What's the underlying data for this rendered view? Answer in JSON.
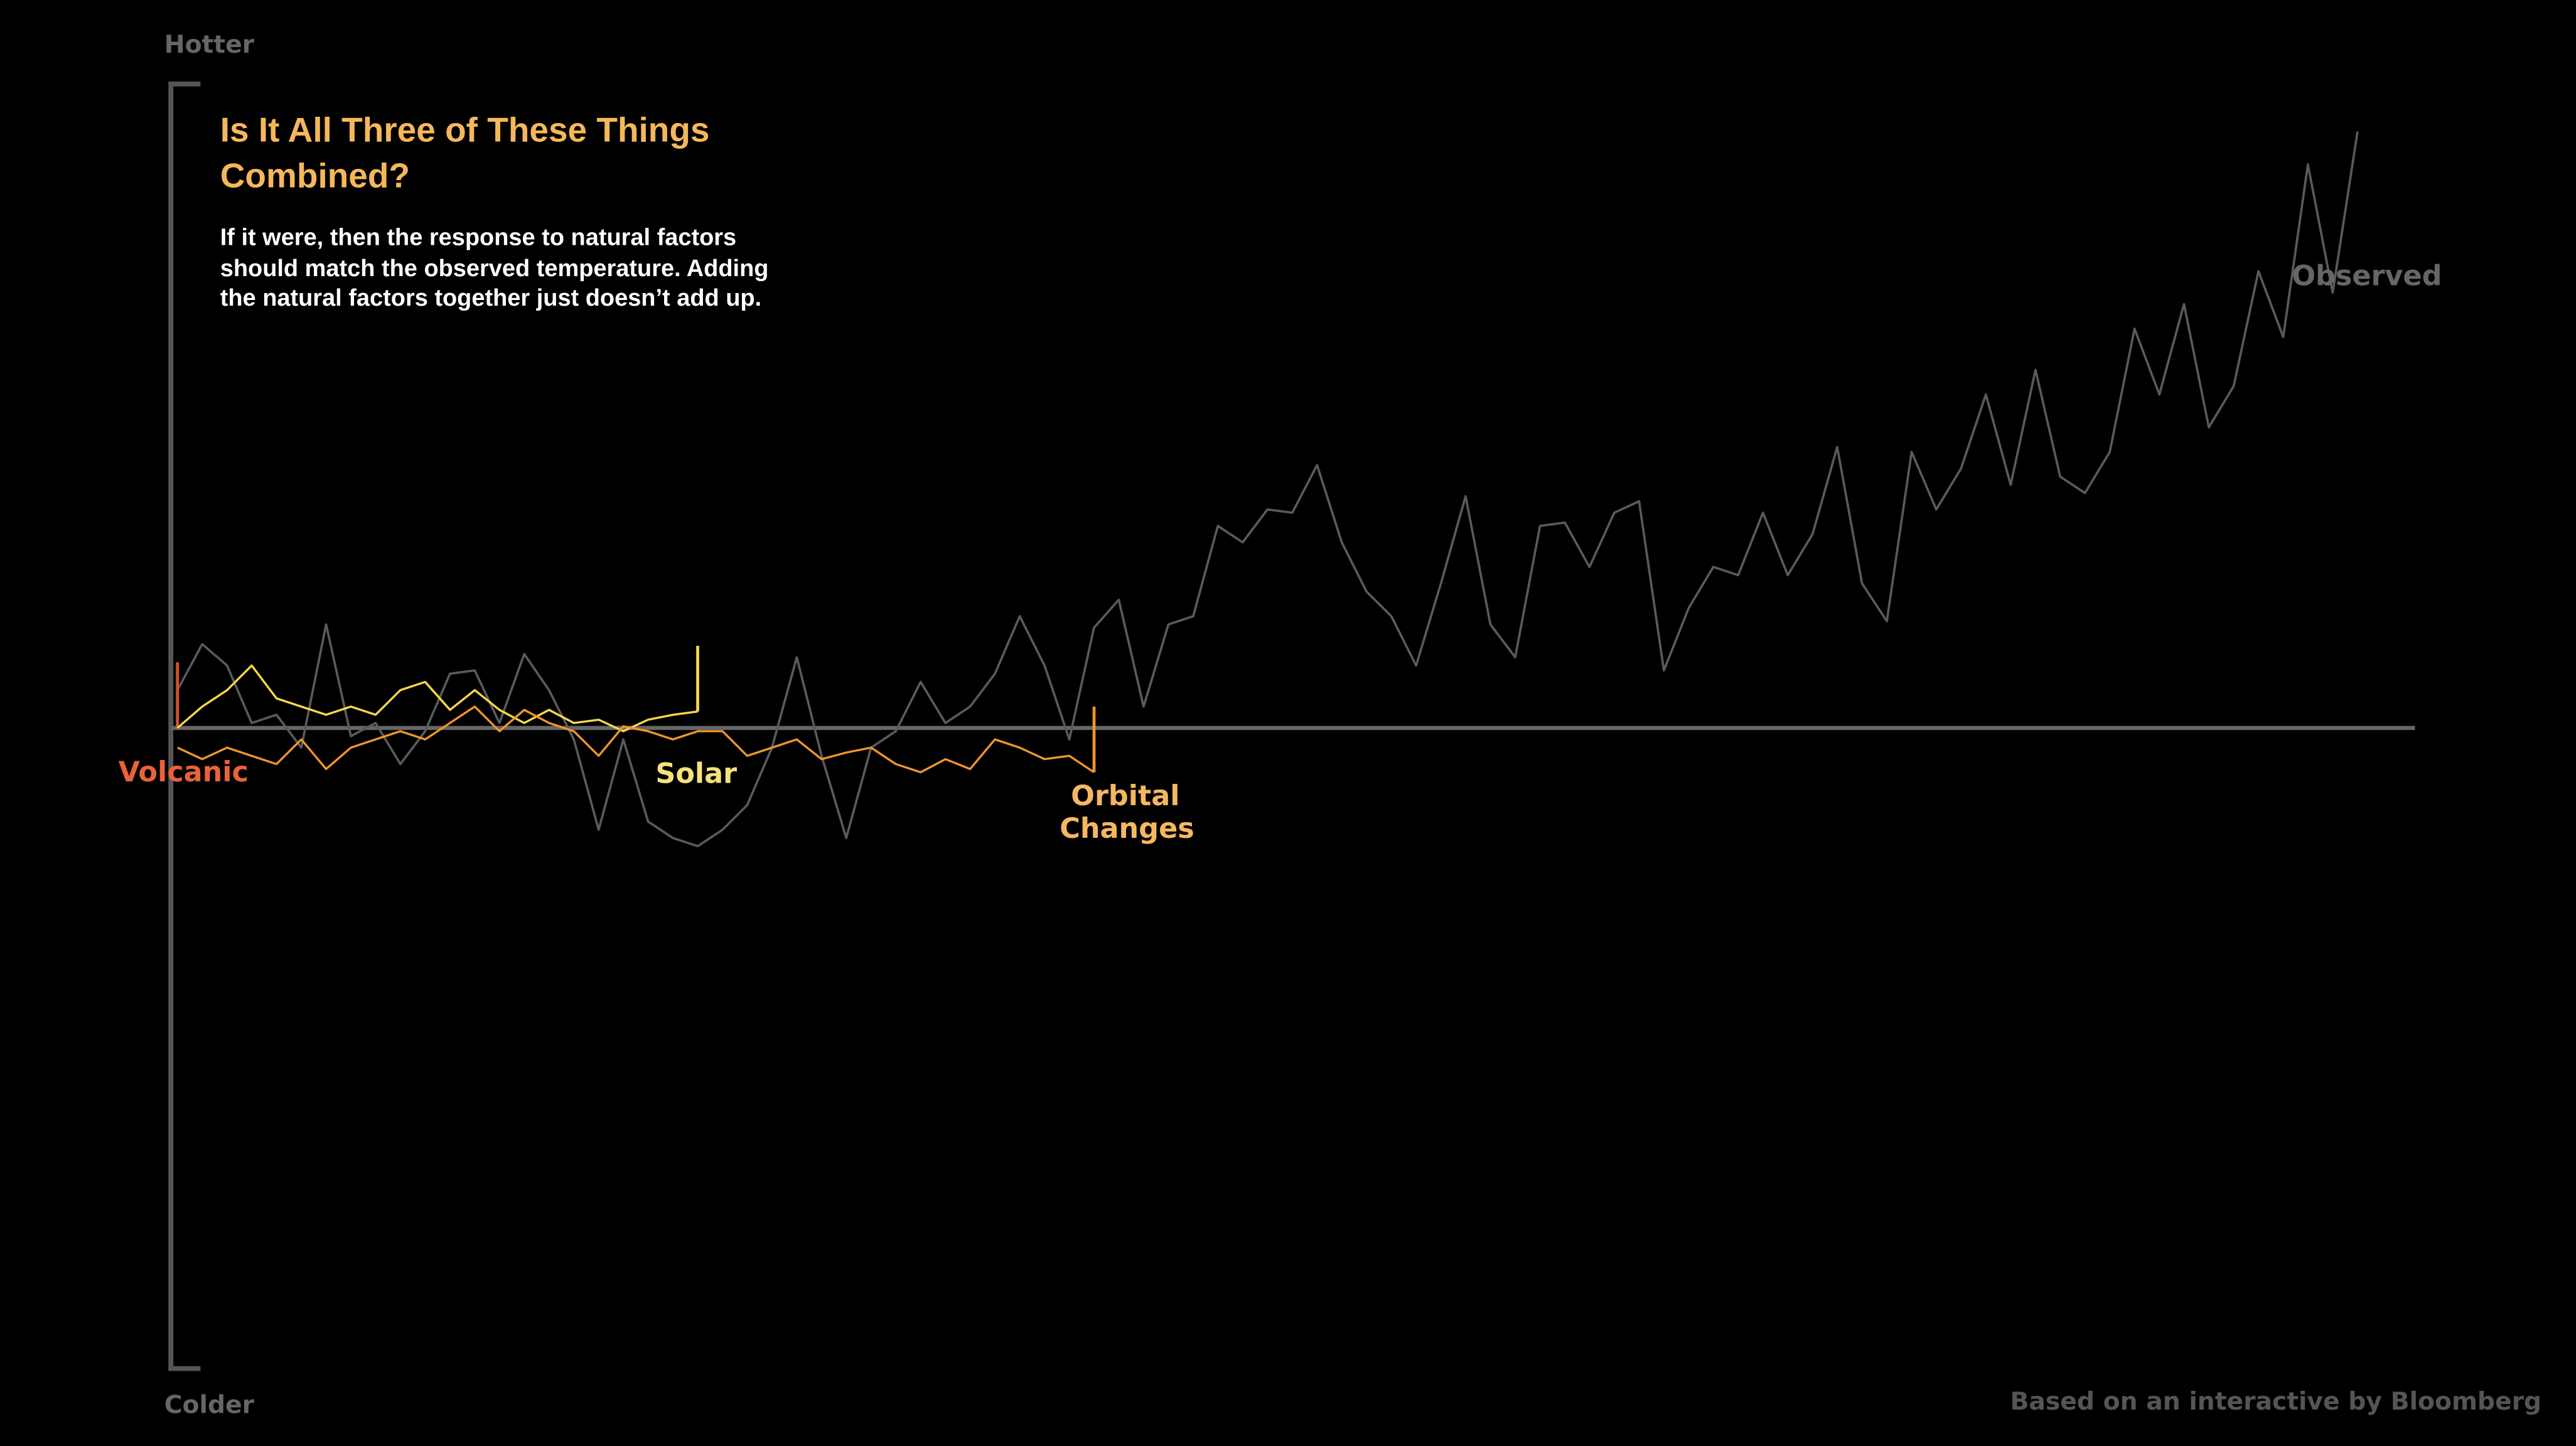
{
  "chart_data": {
    "type": "line",
    "title": "Is It All Three of These Things Combined?",
    "subtitle": "If it were, then the response to natural factors should match the observed temperature. Adding the natural factors together just doesn’t add up.",
    "y_top_label": "Hotter",
    "y_bottom_label": "Colder",
    "source": "Based on an interactive by Bloomberg",
    "xlim": [
      0,
      88
    ],
    "ylim": [
      -390,
      393
    ],
    "x": [
      0,
      1,
      2,
      3,
      4,
      5,
      6,
      7,
      8,
      9,
      10,
      11,
      12,
      13,
      14,
      15,
      16,
      17,
      18,
      19,
      20,
      21,
      22,
      23,
      24,
      25,
      26,
      27,
      28,
      29,
      30,
      31,
      32,
      33,
      34,
      35,
      36,
      37,
      38,
      39,
      40,
      41,
      42,
      43,
      44,
      45,
      46,
      47,
      48,
      49,
      50,
      51,
      52,
      53,
      54,
      55,
      56,
      57,
      58,
      59,
      60,
      61,
      62,
      63,
      64,
      65,
      66,
      67,
      68,
      69,
      70,
      71,
      72,
      73,
      74,
      75,
      76,
      77,
      78,
      79,
      80,
      81,
      82,
      83,
      84,
      85,
      86,
      87,
      88
    ],
    "series": [
      {
        "name": "Observed",
        "color": "#5a5a5a",
        "label_color": "#666666",
        "values": [
          23,
          51,
          38,
          3,
          8,
          -12,
          63,
          -5,
          3,
          -22,
          -2,
          33,
          35,
          3,
          45,
          23,
          -7,
          -62,
          -7,
          -57,
          -67,
          -72,
          -62,
          -47,
          -12,
          43,
          -17,
          -67,
          -12,
          -2,
          28,
          3,
          13,
          33,
          68,
          38,
          -7,
          61,
          78,
          13,
          63,
          68,
          123,
          113,
          133,
          131,
          160,
          113,
          83,
          68,
          38,
          88,
          141,
          63,
          43,
          123,
          125,
          98,
          131,
          138,
          35,
          73,
          98,
          93,
          131,
          93,
          118,
          171,
          88,
          65,
          168,
          133,
          158,
          203,
          148,
          218,
          153,
          143,
          168,
          243,
          203,
          258,
          183,
          208,
          278,
          238,
          343,
          265,
          363
        ]
      },
      {
        "name": "Volcanic",
        "color": "#d9502a",
        "label_color": "#e8623a",
        "values": [
          0,
          null,
          null,
          null,
          null,
          null,
          null,
          null,
          null,
          null,
          null,
          null,
          null,
          null,
          null,
          null,
          null,
          null,
          null,
          null,
          null,
          null,
          null,
          null,
          null,
          null,
          null,
          null,
          null,
          null,
          null,
          null,
          null,
          null,
          null,
          null,
          null,
          null,
          null,
          null,
          null,
          null,
          null,
          null,
          null,
          null,
          null,
          null,
          null,
          null,
          null,
          null,
          null,
          null,
          null,
          null,
          null,
          null,
          null,
          null,
          null,
          null,
          null,
          null,
          null,
          null,
          null,
          null,
          null,
          null,
          null,
          null,
          null,
          null,
          null,
          null,
          null,
          null,
          null,
          null,
          null,
          null,
          null,
          null,
          null,
          null,
          null,
          null,
          null
        ]
      },
      {
        "name": "Solar",
        "color": "#f5d94a",
        "label_color": "#f5e27a",
        "values": [
          0,
          13,
          23,
          38,
          18,
          13,
          8,
          13,
          8,
          23,
          28,
          11,
          23,
          11,
          3,
          11,
          3,
          5,
          -2,
          5,
          8,
          10,
          null,
          null,
          null,
          null,
          null,
          null,
          null,
          null,
          null,
          null,
          null,
          null,
          null,
          null,
          null,
          null,
          null,
          null,
          null,
          null,
          null,
          null,
          null,
          null,
          null,
          null,
          null,
          null,
          null,
          null,
          null,
          null,
          null,
          null,
          null,
          null,
          null,
          null,
          null,
          null,
          null,
          null,
          null,
          null,
          null,
          null,
          null,
          null,
          null,
          null,
          null,
          null,
          null,
          null,
          null,
          null,
          null,
          null,
          null,
          null,
          null,
          null,
          null,
          null,
          null,
          null,
          null
        ]
      },
      {
        "name": "Orbital Changes",
        "color": "#f0952e",
        "label_color": "#f4b860",
        "values": [
          -12,
          -19,
          -12,
          -17,
          -22,
          -7,
          -25,
          -12,
          -7,
          -2,
          -7,
          3,
          13,
          -2,
          11,
          3,
          -2,
          -17,
          1,
          -2,
          -7,
          -2,
          -2,
          -17,
          -12,
          -7,
          -19,
          -15,
          -12,
          -22,
          -27,
          -19,
          -25,
          -7,
          -12,
          -19,
          -17,
          -27,
          null,
          null,
          null,
          null,
          null,
          null,
          null,
          null,
          null,
          null,
          null,
          null,
          null,
          null,
          null,
          null,
          null,
          null,
          null,
          null,
          null,
          null,
          null,
          null,
          null,
          null,
          null,
          null,
          null,
          null,
          null,
          null,
          null,
          null,
          null,
          null,
          null,
          null,
          null,
          null,
          null,
          null,
          null,
          null,
          null,
          null,
          null,
          null,
          null,
          null,
          null
        ]
      }
    ]
  }
}
